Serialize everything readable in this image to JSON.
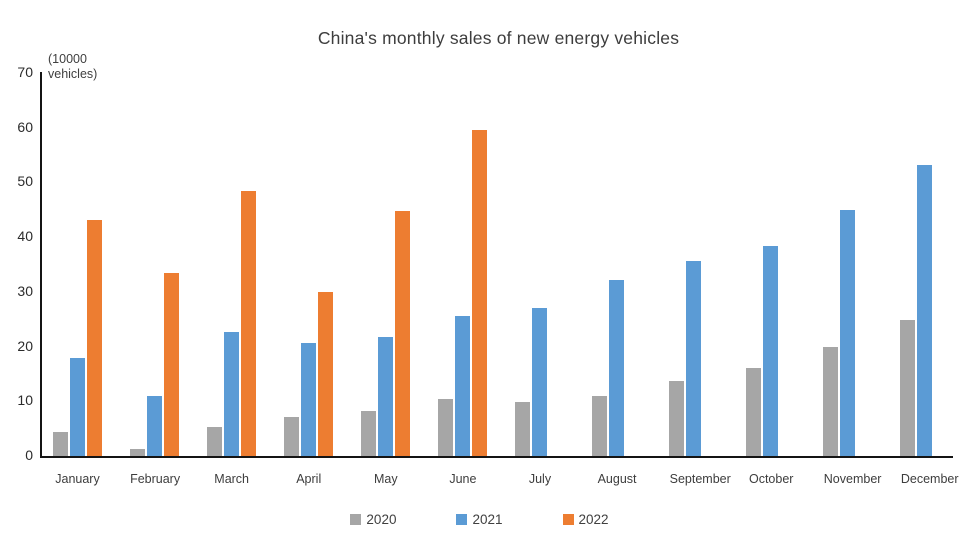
{
  "chart_data": {
    "type": "bar",
    "title": "China's monthly sales of new energy vehicles",
    "unit_label": "(10000\nvehicles)",
    "categories": [
      "January",
      "February",
      "March",
      "April",
      "May",
      "June",
      "July",
      "August",
      "September",
      "October",
      "November",
      "December"
    ],
    "series": [
      {
        "name": "2020",
        "color": "#a6a6a6",
        "values": [
          4.4,
          1.3,
          5.3,
          7.2,
          8.2,
          10.4,
          9.8,
          10.9,
          13.8,
          16.0,
          20.0,
          24.8
        ]
      },
      {
        "name": "2021",
        "color": "#5b9bd5",
        "values": [
          17.9,
          11.0,
          22.6,
          20.6,
          21.7,
          25.6,
          27.1,
          32.1,
          35.7,
          38.3,
          45.0,
          53.1
        ]
      },
      {
        "name": "2022",
        "color": "#ed7d31",
        "values": [
          43.1,
          33.4,
          48.4,
          29.9,
          44.7,
          59.6,
          null,
          null,
          null,
          null,
          null,
          null
        ]
      }
    ],
    "yticks": [
      0,
      10,
      20,
      30,
      40,
      50,
      60,
      70
    ],
    "ylim": [
      0,
      70
    ],
    "grid": false,
    "legend_position": "bottom",
    "axis_color": "#141414",
    "background": "#ffffff"
  }
}
